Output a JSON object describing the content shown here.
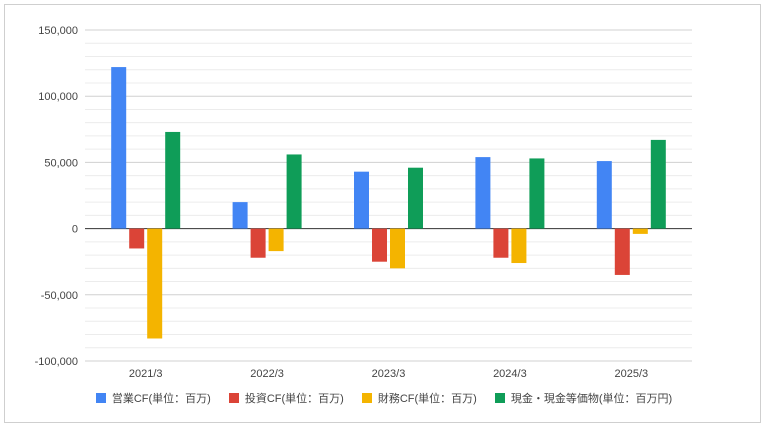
{
  "chart_data": {
    "type": "bar",
    "categories": [
      "2021/3",
      "2022/3",
      "2023/3",
      "2024/3",
      "2025/3"
    ],
    "series": [
      {
        "name": "営業CF(単位：百万)",
        "color": "#4285F4",
        "values": [
          122000,
          20000,
          43000,
          54000,
          51000
        ]
      },
      {
        "name": "投資CF(単位：百万)",
        "color": "#DB4437",
        "values": [
          -15000,
          -22000,
          -25000,
          -22000,
          -35000
        ]
      },
      {
        "name": "財務CF(単位：百万)",
        "color": "#F4B400",
        "values": [
          -83000,
          -17000,
          -30000,
          -26000,
          -4000
        ]
      },
      {
        "name": "現金・現金等価物(単位：百万円)",
        "color": "#0F9D58",
        "values": [
          73000,
          56000,
          46000,
          53000,
          67000
        ]
      }
    ],
    "yticks": [
      "150,000",
      "100,000",
      "50,000",
      "0",
      "-50,000",
      "-100,000"
    ],
    "ylim": [
      -100000,
      150000
    ],
    "grid": true,
    "legend_position": "bottom"
  }
}
